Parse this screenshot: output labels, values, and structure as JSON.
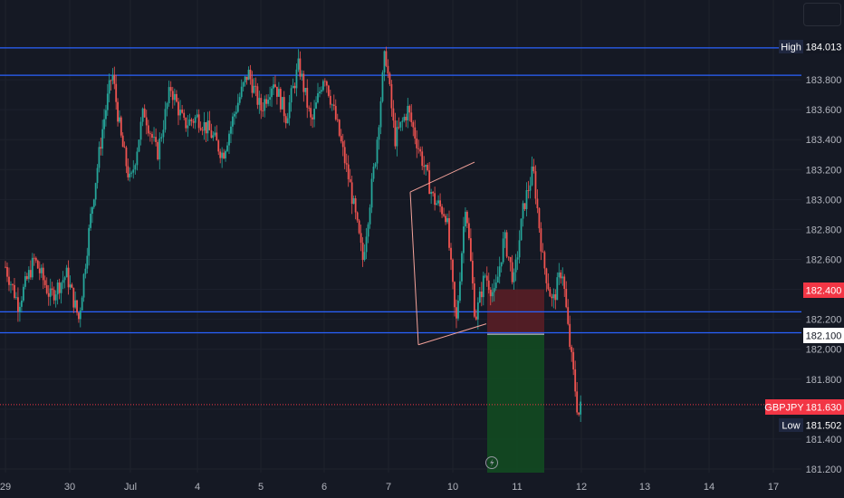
{
  "chart_data": {
    "type": "candlestick",
    "symbol": "GBPJPY",
    "x_ticks": [
      "29",
      "30",
      "Jul",
      "4",
      "5",
      "6",
      "7",
      "10",
      "11",
      "12",
      "13",
      "14",
      "17"
    ],
    "y_ticks": [
      181.2,
      181.4,
      181.6,
      181.8,
      182.0,
      182.2,
      182.4,
      182.6,
      182.8,
      183.0,
      183.2,
      183.4,
      183.6,
      183.8
    ],
    "y_range": [
      181.2,
      184.2
    ],
    "last_price": "181.630",
    "high": {
      "label": "High",
      "value": "184.013"
    },
    "low": {
      "label": "Low",
      "value": "181.502"
    },
    "horizontal_levels": [
      184.013,
      183.83,
      182.25,
      182.11
    ],
    "stop_level": "182.400",
    "entry_level": "182.100",
    "channel_upper": [
      {
        "x": "7",
        "y": 183.05
      },
      {
        "x": "10",
        "y": 183.25
      }
    ],
    "channel_lower": [
      {
        "x": "7",
        "y": 182.03
      },
      {
        "x": "10",
        "y": 182.17
      }
    ],
    "position": {
      "side": "short",
      "entry": 182.1,
      "stop": 182.4,
      "target": 181.2,
      "start": "10",
      "end": "11"
    },
    "price_path": [
      [
        0,
        182.55
      ],
      [
        0.2,
        182.3
      ],
      [
        0.45,
        182.6
      ],
      [
        0.7,
        182.35
      ],
      [
        0.95,
        182.5
      ],
      [
        1.15,
        182.2
      ],
      [
        1.35,
        182.9
      ],
      [
        1.55,
        183.5
      ],
      [
        1.7,
        183.85
      ],
      [
        1.85,
        183.4
      ],
      [
        2.0,
        183.1
      ],
      [
        2.2,
        183.6
      ],
      [
        2.4,
        183.3
      ],
      [
        2.6,
        183.75
      ],
      [
        2.8,
        183.5
      ],
      [
        3.0,
        183.55
      ],
      [
        3.2,
        183.45
      ],
      [
        3.4,
        183.3
      ],
      [
        3.6,
        183.6
      ],
      [
        3.8,
        183.85
      ],
      [
        4.0,
        183.6
      ],
      [
        4.2,
        183.8
      ],
      [
        4.4,
        183.55
      ],
      [
        4.6,
        183.9
      ],
      [
        4.8,
        183.5
      ],
      [
        5.0,
        183.85
      ],
      [
        5.2,
        183.5
      ],
      [
        5.4,
        183.1
      ],
      [
        5.6,
        182.6
      ],
      [
        5.8,
        183.3
      ],
      [
        5.95,
        184.0
      ],
      [
        6.1,
        183.4
      ],
      [
        6.3,
        183.6
      ],
      [
        6.5,
        183.3
      ],
      [
        6.7,
        183.0
      ],
      [
        6.9,
        182.9
      ],
      [
        7.05,
        182.15
      ],
      [
        7.2,
        183.0
      ],
      [
        7.35,
        182.2
      ],
      [
        7.5,
        182.5
      ],
      [
        7.65,
        182.35
      ],
      [
        7.8,
        182.75
      ],
      [
        7.95,
        182.45
      ],
      [
        8.1,
        182.95
      ],
      [
        8.25,
        183.2
      ],
      [
        8.4,
        182.6
      ],
      [
        8.55,
        182.3
      ],
      [
        8.7,
        182.55
      ],
      [
        8.8,
        182.1
      ],
      [
        8.9,
        181.75
      ],
      [
        8.95,
        181.55
      ],
      [
        9.0,
        181.63
      ]
    ]
  }
}
